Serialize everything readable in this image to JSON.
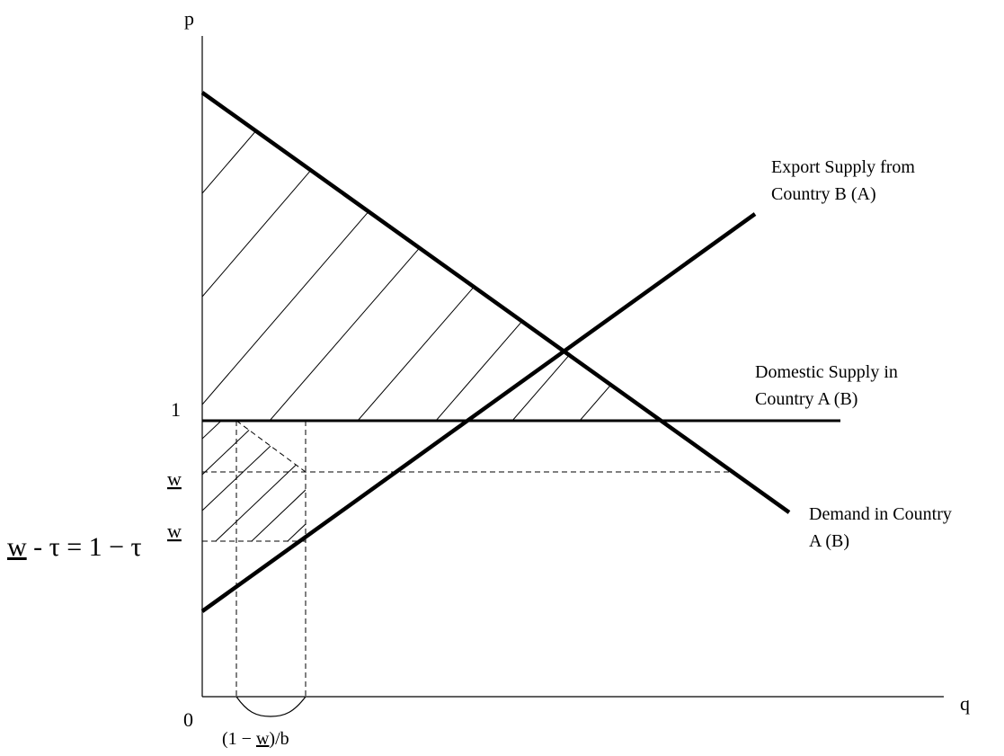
{
  "axes": {
    "y_label": "p",
    "x_label": "q",
    "origin_label": "0"
  },
  "y_ticks": {
    "one": "1",
    "w_upper": "w",
    "w_lower": "w"
  },
  "left_equation": {
    "w": "w",
    "rest": " - τ = 1 − τ"
  },
  "x_brace_label": {
    "prefix": "(1 − ",
    "w": "w",
    "suffix": ")/b"
  },
  "curves": {
    "export_supply": [
      "Export Supply from",
      "Country B (A)"
    ],
    "domestic_supply": [
      "Domestic Supply in",
      "Country A (B)"
    ],
    "demand": [
      "Demand in Country",
      "A (B)"
    ]
  }
}
